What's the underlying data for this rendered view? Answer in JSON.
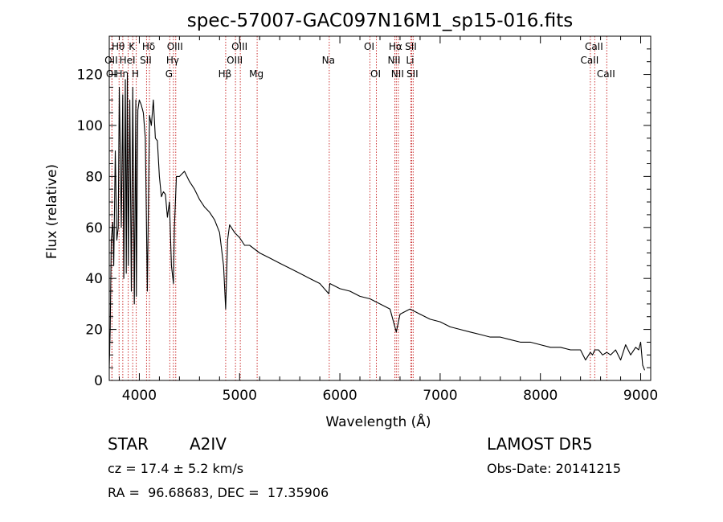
{
  "chart_data": {
    "type": "line",
    "title": "spec-57007-GAC097N16M1_sp15-016.fits",
    "xlabel": "Wavelength (Å)",
    "ylabel": "Flux (relative)",
    "xlim": [
      3700,
      9100
    ],
    "ylim": [
      0,
      135
    ],
    "xticks": [
      4000,
      5000,
      6000,
      7000,
      8000,
      9000
    ],
    "xtick_labels": [
      "4000",
      "5000",
      "6000",
      "7000",
      "8000",
      "9000"
    ],
    "yticks": [
      0,
      20,
      40,
      60,
      80,
      100,
      120
    ],
    "ytick_labels": [
      "0",
      "20",
      "40",
      "60",
      "80",
      "100",
      "120"
    ],
    "grid": false,
    "series": [
      {
        "x": [
          3700,
          3710,
          3720,
          3735,
          3745,
          3760,
          3775,
          3790,
          3800,
          3820,
          3835,
          3845,
          3860,
          3870,
          3880,
          3890,
          3905,
          3920,
          3935,
          3950,
          3965,
          3970,
          3985,
          4000,
          4020,
          4040,
          4060,
          4080,
          4101,
          4120,
          4140,
          4160,
          4180,
          4200,
          4220,
          4240,
          4260,
          4280,
          4300,
          4320,
          4340,
          4350,
          4370,
          4400,
          4450,
          4500,
          4550,
          4600,
          4650,
          4700,
          4750,
          4800,
          4840,
          4861,
          4880,
          4900,
          4950,
          5000,
          5050,
          5100,
          5200,
          5300,
          5400,
          5500,
          5600,
          5700,
          5800,
          5890,
          5900,
          6000,
          6100,
          6200,
          6300,
          6400,
          6500,
          6563,
          6600,
          6700,
          6800,
          6900,
          7000,
          7100,
          7200,
          7300,
          7400,
          7500,
          7600,
          7700,
          7800,
          7900,
          8000,
          8100,
          8200,
          8300,
          8400,
          8450,
          8498,
          8520,
          8542,
          8580,
          8620,
          8662,
          8700,
          8750,
          8800,
          8850,
          8900,
          8950,
          8980,
          9000,
          9020,
          9040
        ],
        "y": [
          5,
          20,
          55,
          62,
          45,
          90,
          55,
          60,
          115,
          60,
          112,
          40,
          118,
          42,
          120,
          45,
          110,
          35,
          115,
          30,
          110,
          33,
          106,
          110,
          108,
          105,
          95,
          35,
          104,
          100,
          110,
          95,
          94,
          80,
          72,
          74,
          73,
          64,
          70,
          45,
          38,
          60,
          80,
          80,
          82,
          78,
          75,
          71,
          68,
          66,
          63,
          58,
          45,
          28,
          55,
          61,
          58,
          56,
          53,
          53,
          50,
          48,
          46,
          44,
          42,
          40,
          38,
          34,
          38,
          36,
          35,
          33,
          32,
          30,
          28,
          19,
          26,
          28,
          26,
          24,
          23,
          21,
          20,
          19,
          18,
          17,
          17,
          16,
          15,
          15,
          14,
          13,
          13,
          12,
          12,
          8,
          11,
          10,
          12,
          12,
          10,
          11,
          10,
          12,
          8,
          14,
          10,
          13,
          12,
          15,
          6,
          4
        ]
      }
    ],
    "lines": [
      {
        "label": "OII",
        "x": 3727,
        "row": 2
      },
      {
        "label": "OI",
        "x": 3727,
        "row": 3
      },
      {
        "label": "Hθ",
        "x": 3798,
        "row": 1
      },
      {
        "label": "Hη",
        "x": 3835,
        "row": 3
      },
      {
        "label": "HeI",
        "x": 3889,
        "row": 2
      },
      {
        "label": "K",
        "x": 3934,
        "row": 1
      },
      {
        "label": "H",
        "x": 3969,
        "row": 3
      },
      {
        "label": "SII",
        "x": 4072,
        "row": 2
      },
      {
        "label": "Hδ",
        "x": 4101,
        "row": 1
      },
      {
        "label": "G",
        "x": 4304,
        "row": 3
      },
      {
        "label": "Hγ",
        "x": 4340,
        "row": 2
      },
      {
        "label": "OIII",
        "x": 4363,
        "row": 1
      },
      {
        "label": "Hβ",
        "x": 4861,
        "row": 3
      },
      {
        "label": "OIII",
        "x": 4959,
        "row": 2
      },
      {
        "label": "OIII",
        "x": 5007,
        "row": 1
      },
      {
        "label": "Mg",
        "x": 5175,
        "row": 3
      },
      {
        "label": "Na",
        "x": 5894,
        "row": 2
      },
      {
        "label": "OI",
        "x": 6300,
        "row": 1
      },
      {
        "label": "OI",
        "x": 6364,
        "row": 3
      },
      {
        "label": "NII",
        "x": 6548,
        "row": 2
      },
      {
        "label": "Hα",
        "x": 6563,
        "row": 1
      },
      {
        "label": "NII",
        "x": 6583,
        "row": 3
      },
      {
        "label": "Li",
        "x": 6708,
        "row": 2
      },
      {
        "label": "SII",
        "x": 6716,
        "row": 1
      },
      {
        "label": "SII",
        "x": 6731,
        "row": 3
      },
      {
        "label": "CaII",
        "x": 8498,
        "row": 2
      },
      {
        "label": "CaII",
        "x": 8542,
        "row": 1
      },
      {
        "label": "CaII",
        "x": 8662,
        "row": 3
      }
    ],
    "line_color": "#cc3333"
  },
  "info": {
    "class_label": "STAR",
    "subclass": "A2IV",
    "survey": "LAMOST DR5",
    "cz": "cz = 17.4 ± 5.2 km/s",
    "obs_date": "Obs-Date: 20141215",
    "coords": "RA =  96.68683, DEC =  17.35906"
  }
}
